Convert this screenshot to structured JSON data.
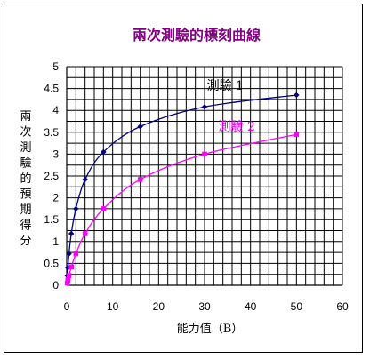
{
  "chart_data": {
    "type": "line",
    "title": "兩次測驗的標刻曲線",
    "xlabel": "能力值（B）",
    "ylabel": "兩次測驗的預期得分",
    "xlim": [
      0,
      60
    ],
    "ylim": [
      0,
      5
    ],
    "x_ticks": [
      "0",
      "10",
      "20",
      "30",
      "40",
      "50",
      "60"
    ],
    "y_ticks": [
      "0",
      "0.5",
      "1",
      "1.5",
      "2",
      "2.5",
      "3",
      "3.5",
      "4",
      "4.5",
      "5"
    ],
    "grid": true,
    "series": [
      {
        "name": "測驗 1",
        "color": "#000080",
        "marker": "diamond",
        "x": [
          0.125,
          0.25,
          0.5,
          1,
          2,
          4,
          8,
          16,
          30,
          50
        ],
        "y": [
          0.22,
          0.4,
          0.72,
          1.18,
          1.75,
          2.42,
          3.05,
          3.63,
          4.08,
          4.35
        ]
      },
      {
        "name": "測驗 2",
        "color": "#ff00ff",
        "marker": "square",
        "x": [
          0.125,
          0.25,
          0.5,
          1,
          2,
          4,
          8,
          16,
          30,
          50
        ],
        "y": [
          0.05,
          0.12,
          0.22,
          0.42,
          0.72,
          1.18,
          1.75,
          2.42,
          3.0,
          3.45
        ]
      }
    ]
  }
}
